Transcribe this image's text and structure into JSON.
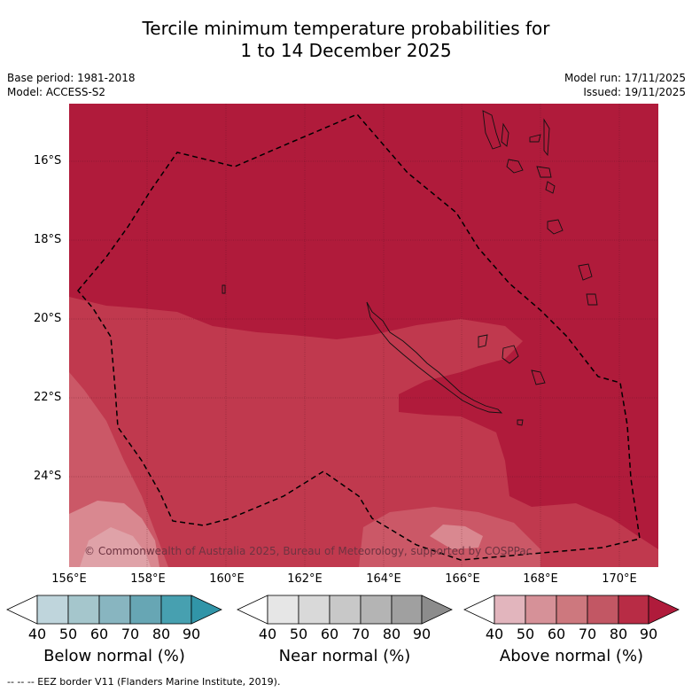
{
  "title_line1": "Tercile minimum temperature probabilities for",
  "title_line2": "1 to 14 December 2025",
  "base_period": "Base period: 1981-2018",
  "model": "Model: ACCESS-S2",
  "model_run": "Model run: 17/11/2025",
  "issued": "Issued: 19/11/2025",
  "lat_labels": [
    "16°S",
    "18°S",
    "20°S",
    "22°S",
    "24°S"
  ],
  "lon_labels": [
    "156°E",
    "158°E",
    "160°E",
    "162°E",
    "164°E",
    "166°E",
    "168°E",
    "170°E"
  ],
  "copyright": "© Commonwealth of Australia 2025, Bureau of Meteorology, supported by COSPPac",
  "colorbars": [
    {
      "title": "Below normal (%)",
      "ticks": [
        "40",
        "50",
        "60",
        "70",
        "80",
        "90"
      ],
      "colors": [
        "#ffffff",
        "#bfd5dc",
        "#a5c6cc",
        "#88b5c0",
        "#67a6b4",
        "#47a0b0",
        "#3195a8"
      ]
    },
    {
      "title": "Near normal (%)",
      "ticks": [
        "40",
        "50",
        "60",
        "70",
        "80",
        "90"
      ],
      "colors": [
        "#ffffff",
        "#e6e6e6",
        "#d9d9d9",
        "#c8c8c8",
        "#b4b4b4",
        "#a0a0a0",
        "#8c8c8c"
      ]
    },
    {
      "title": "Above normal (%)",
      "ticks": [
        "40",
        "50",
        "60",
        "70",
        "80",
        "90"
      ],
      "colors": [
        "#ffffff",
        "#e2b5bd",
        "#d69198",
        "#cd787e",
        "#c25764",
        "#b82c45",
        "#b01b3b"
      ]
    }
  ],
  "footnote": "--  --  -- EEZ border V11 (Flanders Marine Institute, 2019).",
  "colors": {
    "map_dark": "#b01b3b",
    "map_mid": "#c0394e",
    "map_light": "#cb5867",
    "map_lighter": "#d98890"
  }
}
